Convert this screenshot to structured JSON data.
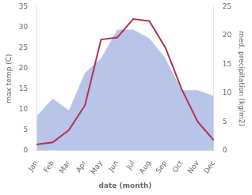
{
  "chart_data": {
    "type": "line",
    "categories": [
      "Jan",
      "Feb",
      "Mar",
      "Apr",
      "May",
      "Jun",
      "Jul",
      "Aug",
      "Sep",
      "Oct",
      "Nov",
      "Dec"
    ],
    "xlabel": "date (month)",
    "ylabel": "max temp (C)",
    "y2label": "med. precipitation (kg/m2)",
    "series": [
      {
        "type": "area",
        "color": "#b8c4e8",
        "axis": "y2",
        "values": [
          6.0,
          9.0,
          7.0,
          13.5,
          16.0,
          21.0,
          21.0,
          19.5,
          16.0,
          10.5,
          10.5,
          9.5
        ]
      },
      {
        "type": "line",
        "color": "#b03050",
        "values": [
          1.5,
          2.0,
          5.0,
          11.0,
          27.0,
          27.5,
          32.0,
          31.5,
          25.0,
          15.0,
          7.0,
          2.5
        ]
      }
    ],
    "ylim": [
      0,
      35
    ],
    "yticks": [
      0,
      5,
      10,
      15,
      20,
      25,
      30,
      35
    ],
    "y2lim": [
      0,
      25
    ],
    "y2ticks": [
      0,
      5,
      10,
      15,
      20,
      25
    ],
    "grid": false
  }
}
